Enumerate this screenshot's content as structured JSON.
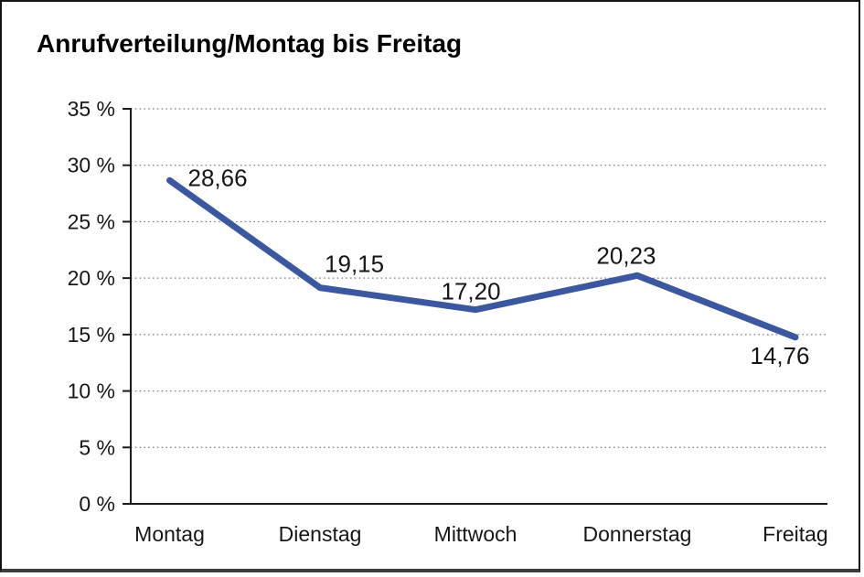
{
  "chart_data": {
    "type": "line",
    "title": "Anrufverteilung/Montag bis Freitag",
    "categories": [
      "Montag",
      "Dienstag",
      "Mittwoch",
      "Donnerstag",
      "Freitag"
    ],
    "series": [
      {
        "name": "Anrufverteilung",
        "values": [
          28.66,
          19.15,
          17.2,
          20.23,
          14.76
        ],
        "value_labels": [
          "28,66",
          "19,15",
          "17,20",
          "20,23",
          "14,76"
        ]
      }
    ],
    "xlabel": "",
    "ylabel": "",
    "ylim": [
      0,
      35
    ],
    "y_ticks": [
      0,
      5,
      10,
      15,
      20,
      25,
      30,
      35
    ],
    "y_tick_labels": [
      "0 %",
      "5 %",
      "10 %",
      "15 %",
      "20 %",
      "25 %",
      "30 %",
      "35 %"
    ],
    "grid": "horizontal-dotted",
    "legend": "none",
    "colors": {
      "line": "#3A57A0",
      "axis": "#1a1a1a",
      "grid": "#7d7d7d",
      "text": "#161616",
      "background": "#ffffff",
      "frame_border": "#141414"
    }
  }
}
